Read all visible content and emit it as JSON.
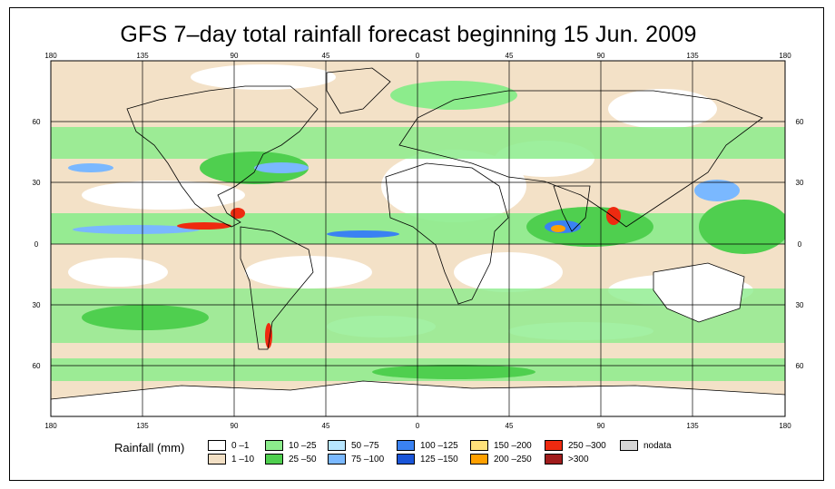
{
  "title": "GFS 7–day total rainfall forecast beginning 15 Jun. 2009",
  "map": {
    "lon_ticks": [
      "180",
      "135",
      "90",
      "45",
      "0",
      "45",
      "90",
      "135",
      "180"
    ],
    "lat_ticks": [
      "60",
      "30",
      "0",
      "30",
      "60"
    ],
    "colors": {
      "ocean_low": "#f2dfc4",
      "light_rain": "#7fe67f",
      "moderate_rain": "#5fd45f",
      "heavy_rain": "#66aaff",
      "very_heavy_rain": "#1f66e0",
      "extreme_rain": "#e02010",
      "gridline": "#000000"
    }
  },
  "legend": {
    "title": "Rainfall (mm)",
    "items": [
      {
        "label": "0 –1",
        "color": "#ffffff"
      },
      {
        "label": "1 –10",
        "color": "#f2dfc4"
      },
      {
        "label": "10 –25",
        "color": "#8cec8c"
      },
      {
        "label": "25 –50",
        "color": "#4fcf4f"
      },
      {
        "label": "50 –75",
        "color": "#b8e6ff"
      },
      {
        "label": "75 –100",
        "color": "#7ab8ff"
      },
      {
        "label": "100 –125",
        "color": "#3a82f2"
      },
      {
        "label": "125 –150",
        "color": "#1a55d8"
      },
      {
        "label": "150 –200",
        "color": "#ffe27a"
      },
      {
        "label": "200 –250",
        "color": "#ffa000"
      },
      {
        "label": "250 –300",
        "color": "#ee2a10"
      },
      {
        "label": ">300",
        "color": "#a01c1c"
      },
      {
        "label": "nodata",
        "color": "#d6d6d6"
      }
    ]
  }
}
